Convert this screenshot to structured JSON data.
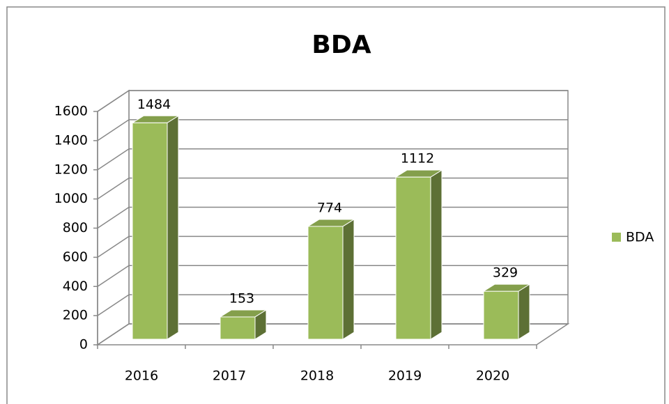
{
  "chart_data": {
    "type": "bar3d",
    "title": "BDA",
    "categories": [
      "2016",
      "2017",
      "2018",
      "2019",
      "2020"
    ],
    "series": [
      {
        "name": "BDA",
        "color": "#9bbb59",
        "values": [
          1484,
          153,
          774,
          1112,
          329
        ]
      }
    ],
    "ylim": [
      0,
      1600
    ],
    "yticks": [
      0,
      200,
      400,
      600,
      800,
      1000,
      1200,
      1400,
      1600
    ],
    "grid": true,
    "legend": "right"
  }
}
